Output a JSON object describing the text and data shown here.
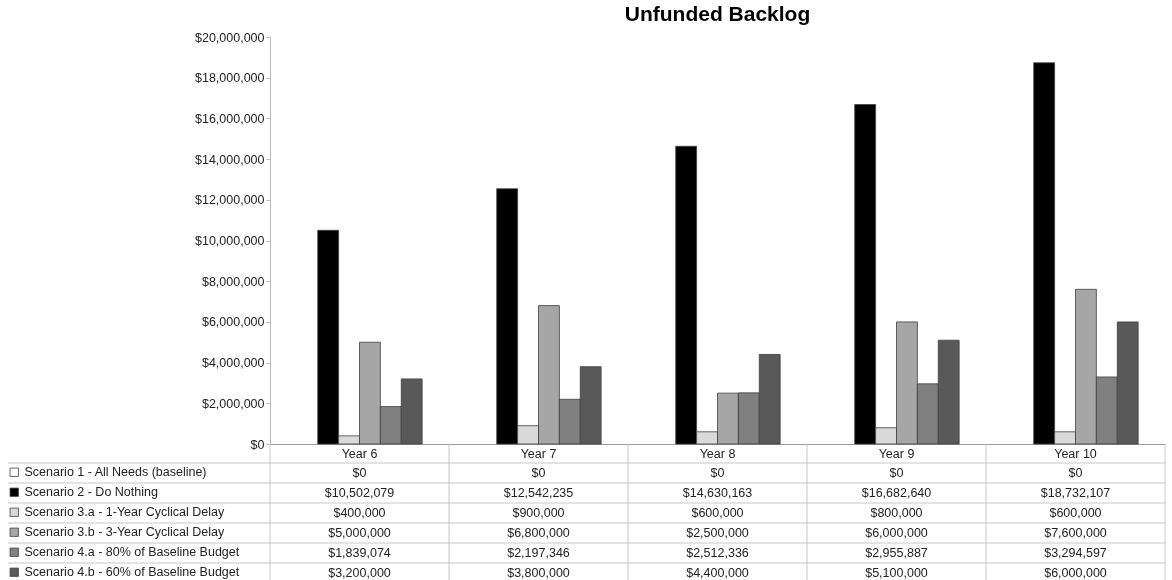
{
  "chart_data": {
    "type": "bar",
    "title": "Unfunded Backlog",
    "categories": [
      "Year 6",
      "Year 7",
      "Year 8",
      "Year 9",
      "Year 10"
    ],
    "series": [
      {
        "name": "Scenario 1 - All Needs (baseline)",
        "color": "#ffffff",
        "values": [
          0,
          0,
          0,
          0,
          0
        ],
        "value_labels": [
          "$0",
          "$0",
          "$0",
          "$0",
          "$0"
        ]
      },
      {
        "name": "Scenario 2 - Do Nothing",
        "color": "#000000",
        "values": [
          10502079,
          12542235,
          14630163,
          16682640,
          18732107
        ],
        "value_labels": [
          "$10,502,079",
          "$12,542,235",
          "$14,630,163",
          "$16,682,640",
          "$18,732,107"
        ]
      },
      {
        "name": "Scenario 3.a - 1-Year Cyclical Delay",
        "color": "#d9d9d9",
        "values": [
          400000,
          900000,
          600000,
          800000,
          600000
        ],
        "value_labels": [
          "$400,000",
          "$900,000",
          "$600,000",
          "$800,000",
          "$600,000"
        ]
      },
      {
        "name": "Scenario 3.b - 3-Year Cyclical Delay",
        "color": "#a6a6a6",
        "values": [
          5000000,
          6800000,
          2500000,
          6000000,
          7600000
        ],
        "value_labels": [
          "$5,000,000",
          "$6,800,000",
          "$2,500,000",
          "$6,000,000",
          "$7,600,000"
        ]
      },
      {
        "name": "Scenario 4.a - 80% of Baseline Budget",
        "color": "#808080",
        "values": [
          1839074,
          2197346,
          2512336,
          2955887,
          3294597
        ],
        "value_labels": [
          "$1,839,074",
          "$2,197,346",
          "$2,512,336",
          "$2,955,887",
          "$3,294,597"
        ]
      },
      {
        "name": "Scenario 4.b - 60% of Baseline Budget",
        "color": "#595959",
        "values": [
          3200000,
          3800000,
          4400000,
          5100000,
          6000000
        ],
        "value_labels": [
          "$3,200,000",
          "$3,800,000",
          "$4,400,000",
          "$5,100,000",
          "$6,000,000"
        ]
      }
    ],
    "ylim": [
      0,
      20000000
    ],
    "yticks": [
      {
        "value": 0,
        "label": "$0"
      },
      {
        "value": 2000000,
        "label": "$2,000,000"
      },
      {
        "value": 4000000,
        "label": "$4,000,000"
      },
      {
        "value": 6000000,
        "label": "$6,000,000"
      },
      {
        "value": 8000000,
        "label": "$8,000,000"
      },
      {
        "value": 10000000,
        "label": "$10,000,000"
      },
      {
        "value": 12000000,
        "label": "$12,000,000"
      },
      {
        "value": 14000000,
        "label": "$14,000,000"
      },
      {
        "value": 16000000,
        "label": "$16,000,000"
      },
      {
        "value": 18000000,
        "label": "$18,000,000"
      },
      {
        "value": 20000000,
        "label": "$20,000,000"
      }
    ],
    "legend": "bottom left"
  }
}
